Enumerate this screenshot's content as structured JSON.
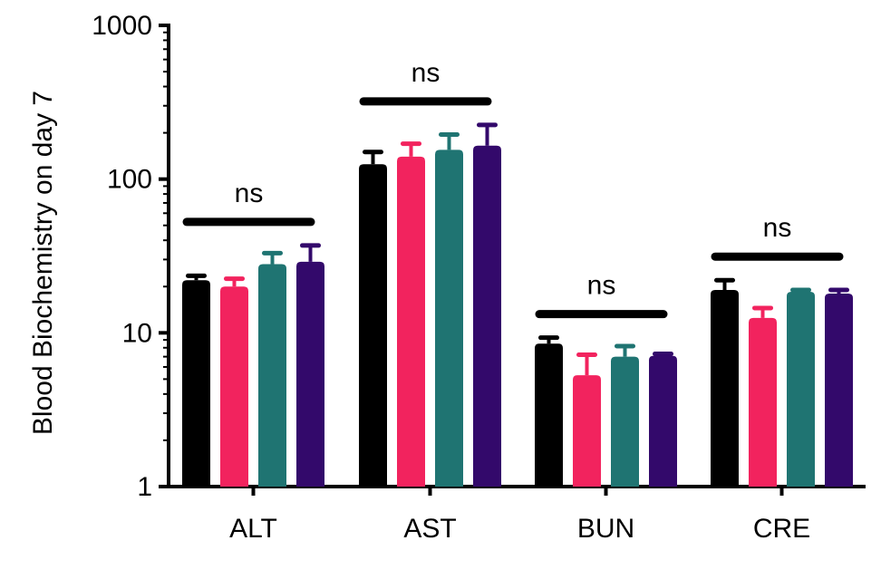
{
  "chart_data": {
    "type": "bar",
    "title": "",
    "xlabel": "",
    "ylabel": "Blood Biochemistry on day 7",
    "yscale": "log",
    "ylim": [
      1,
      1000
    ],
    "yticks": [
      1,
      10,
      100,
      1000
    ],
    "ytick_labels": [
      "1",
      "10",
      "100",
      "1000"
    ],
    "grid": false,
    "legend": "none",
    "categories": [
      "ALT",
      "AST",
      "BUN",
      "CRE"
    ],
    "series": [
      {
        "color": "#000000",
        "values": [
          22,
          125,
          8.5,
          19
        ],
        "errors": [
          23.5,
          150,
          9.3,
          22
        ]
      },
      {
        "color": "#f2235e",
        "values": [
          20,
          140,
          5.3,
          12.5
        ],
        "errors": [
          22.5,
          170,
          7.2,
          14.5
        ]
      },
      {
        "color": "#1f7472",
        "values": [
          28,
          155,
          7.0,
          18.5
        ],
        "errors": [
          33,
          195,
          8.2,
          19
        ]
      },
      {
        "color": "#33096b",
        "values": [
          29,
          165,
          7.1,
          18
        ],
        "errors": [
          37,
          225,
          7.3,
          19
        ]
      }
    ],
    "annotations": [
      {
        "category": "ALT",
        "text": "ns"
      },
      {
        "category": "AST",
        "text": "ns"
      },
      {
        "category": "BUN",
        "text": "ns"
      },
      {
        "category": "CRE",
        "text": "ns"
      }
    ]
  }
}
